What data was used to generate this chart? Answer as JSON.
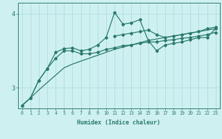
{
  "xlabel": "Humidex (Indice chaleur)",
  "x": [
    0,
    1,
    2,
    3,
    4,
    5,
    6,
    7,
    8,
    9,
    10,
    11,
    12,
    13,
    14,
    15,
    16,
    17,
    18,
    19,
    20,
    21,
    22,
    23
  ],
  "line_smooth": [
    2.76,
    2.86,
    2.97,
    3.07,
    3.17,
    3.27,
    3.32,
    3.36,
    3.4,
    3.44,
    3.48,
    3.52,
    3.55,
    3.58,
    3.61,
    3.64,
    3.66,
    3.68,
    3.7,
    3.72,
    3.74,
    3.76,
    3.78,
    3.8
  ],
  "line_jagged_low": [
    2.76,
    2.86,
    3.1,
    3.26,
    3.4,
    3.5,
    3.5,
    3.46,
    3.46,
    3.48,
    3.52,
    3.54,
    3.57,
    3.58,
    3.6,
    3.62,
    3.62,
    3.64,
    3.65,
    3.67,
    3.68,
    3.7,
    3.72,
    3.75
  ],
  "line_jagged_high": [
    2.76,
    2.86,
    3.1,
    3.26,
    3.48,
    3.53,
    3.54,
    3.5,
    3.52,
    3.58,
    3.68,
    4.02,
    3.86,
    3.88,
    3.92,
    3.64,
    3.5,
    3.58,
    3.6,
    3.62,
    3.65,
    3.68,
    3.68,
    3.8
  ],
  "line_upper": [
    null,
    null,
    null,
    null,
    null,
    null,
    null,
    null,
    null,
    null,
    null,
    3.7,
    3.72,
    3.74,
    3.76,
    3.78,
    3.72,
    3.68,
    3.7,
    3.72,
    3.74,
    3.76,
    3.8,
    3.82
  ],
  "ylim": [
    2.72,
    4.15
  ],
  "yticks": [
    3,
    4
  ],
  "xticks": [
    0,
    1,
    2,
    3,
    4,
    5,
    6,
    7,
    8,
    9,
    10,
    11,
    12,
    13,
    14,
    15,
    16,
    17,
    18,
    19,
    20,
    21,
    22,
    23
  ],
  "line_color": "#2a7a6a",
  "bg_color": "#cef0f0",
  "grid_color": "#aad8d8",
  "font_color": "#2a7a6a"
}
